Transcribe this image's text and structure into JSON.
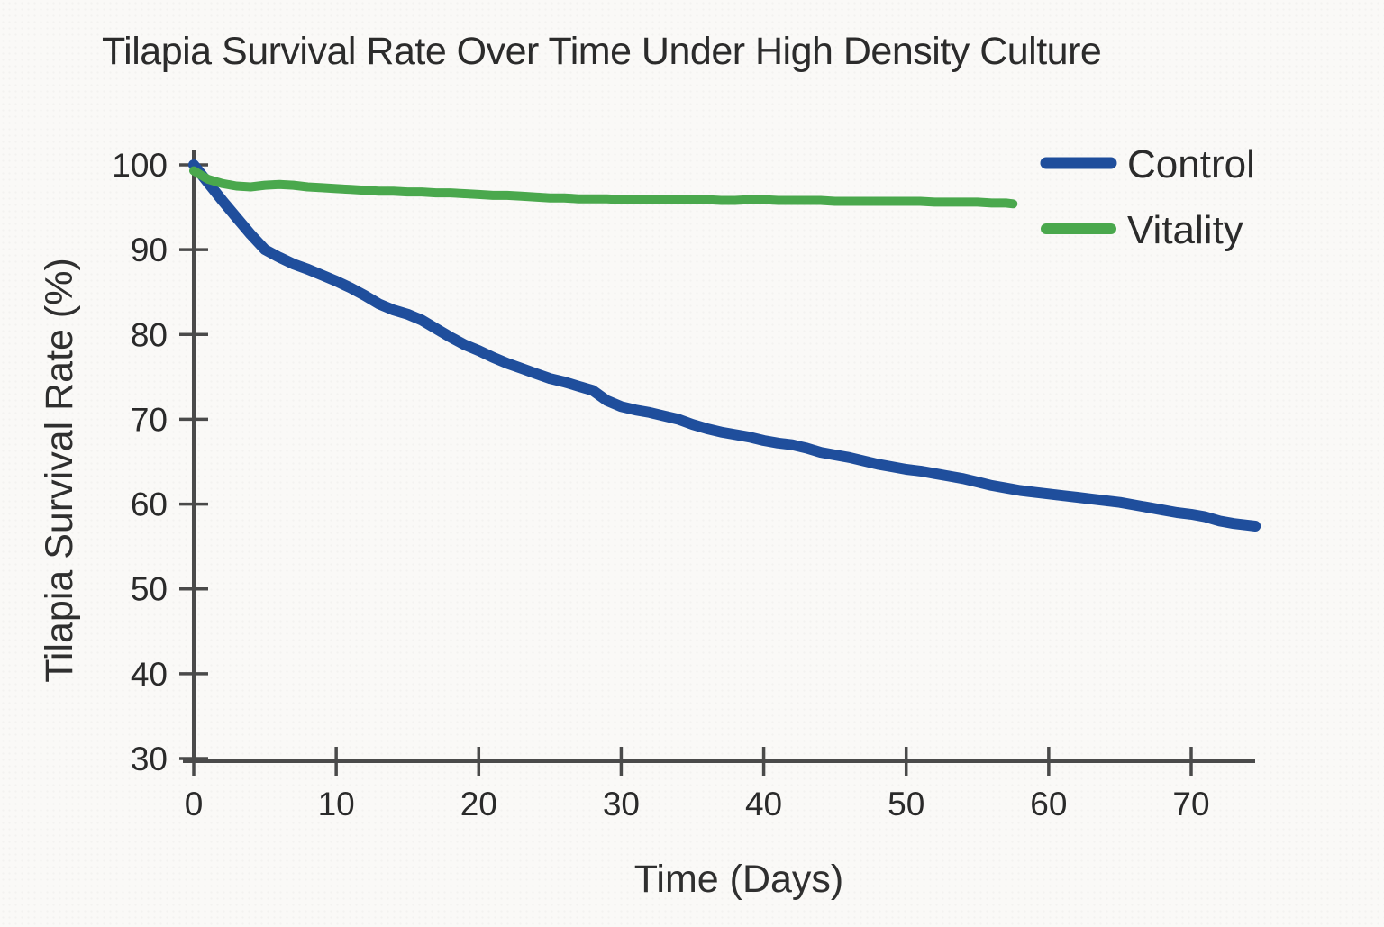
{
  "title": "Tilapia Survival Rate Over Time Under High Density Culture",
  "colors": {
    "control": "#1f4e9c",
    "vitality": "#4aa84d",
    "axis": "#4a4a4a",
    "text": "#2b2b2b",
    "background": "#faf9f7"
  },
  "legend": {
    "position": "upper right",
    "items": [
      {
        "label": "Control",
        "color": "#1f4e9c"
      },
      {
        "label": "Vitality",
        "color": "#4aa84d"
      }
    ]
  },
  "chart_data": {
    "type": "line",
    "title": "Tilapia Survival Rate Over Time Under High Density Culture",
    "xlabel": "Time (Days)",
    "ylabel": "Tilapia Survival Rate (%)",
    "xlim": [
      0,
      75
    ],
    "ylim": [
      30,
      100
    ],
    "x_ticks": [
      0,
      10,
      20,
      30,
      40,
      50,
      60,
      70
    ],
    "y_ticks": [
      30,
      40,
      50,
      60,
      70,
      80,
      90,
      100
    ],
    "grid": false,
    "legend_position": "upper right",
    "series": [
      {
        "name": "Control",
        "color": "#1f4e9c",
        "stroke_width": 12,
        "points": [
          [
            0,
            100
          ],
          [
            1,
            97.9
          ],
          [
            2,
            95.8
          ],
          [
            3,
            93.8
          ],
          [
            4,
            91.8
          ],
          [
            5,
            90
          ],
          [
            6,
            89.1
          ],
          [
            7,
            88.3
          ],
          [
            8,
            87.7
          ],
          [
            9,
            87
          ],
          [
            10,
            86.3
          ],
          [
            11,
            85.5
          ],
          [
            12,
            84.6
          ],
          [
            13,
            83.6
          ],
          [
            14,
            82.9
          ],
          [
            15,
            82.4
          ],
          [
            16,
            81.7
          ],
          [
            17,
            80.7
          ],
          [
            18,
            79.7
          ],
          [
            19,
            78.8
          ],
          [
            20,
            78.1
          ],
          [
            21,
            77.3
          ],
          [
            22,
            76.6
          ],
          [
            23,
            76
          ],
          [
            24,
            75.4
          ],
          [
            25,
            74.8
          ],
          [
            26,
            74.4
          ],
          [
            27,
            73.9
          ],
          [
            28,
            73.4
          ],
          [
            29,
            72.2
          ],
          [
            30,
            71.5
          ],
          [
            31,
            71.1
          ],
          [
            32,
            70.8
          ],
          [
            33,
            70.4
          ],
          [
            34,
            70
          ],
          [
            35,
            69.4
          ],
          [
            36,
            68.9
          ],
          [
            37,
            68.5
          ],
          [
            38,
            68.2
          ],
          [
            39,
            67.9
          ],
          [
            40,
            67.5
          ],
          [
            41,
            67.2
          ],
          [
            42,
            67
          ],
          [
            43,
            66.6
          ],
          [
            44,
            66.1
          ],
          [
            45,
            65.8
          ],
          [
            46,
            65.5
          ],
          [
            47,
            65.1
          ],
          [
            48,
            64.7
          ],
          [
            49,
            64.4
          ],
          [
            50,
            64.1
          ],
          [
            51,
            63.9
          ],
          [
            52,
            63.6
          ],
          [
            53,
            63.3
          ],
          [
            54,
            63
          ],
          [
            55,
            62.6
          ],
          [
            56,
            62.2
          ],
          [
            57,
            61.9
          ],
          [
            58,
            61.6
          ],
          [
            59,
            61.4
          ],
          [
            60,
            61.2
          ],
          [
            61,
            61
          ],
          [
            62,
            60.8
          ],
          [
            63,
            60.6
          ],
          [
            64,
            60.4
          ],
          [
            65,
            60.2
          ],
          [
            66,
            59.9
          ],
          [
            67,
            59.6
          ],
          [
            68,
            59.3
          ],
          [
            69,
            59
          ],
          [
            70,
            58.8
          ],
          [
            71,
            58.5
          ],
          [
            72,
            58
          ],
          [
            73,
            57.7
          ],
          [
            74,
            57.5
          ],
          [
            74.5,
            57.4
          ]
        ]
      },
      {
        "name": "Vitality",
        "color": "#4aa84d",
        "stroke_width": 10,
        "points": [
          [
            0,
            99.3
          ],
          [
            1,
            98.3
          ],
          [
            2,
            97.8
          ],
          [
            3,
            97.5
          ],
          [
            4,
            97.4
          ],
          [
            5,
            97.6
          ],
          [
            6,
            97.7
          ],
          [
            7,
            97.6
          ],
          [
            8,
            97.4
          ],
          [
            9,
            97.3
          ],
          [
            10,
            97.2
          ],
          [
            11,
            97.1
          ],
          [
            12,
            97
          ],
          [
            13,
            96.9
          ],
          [
            14,
            96.9
          ],
          [
            15,
            96.8
          ],
          [
            16,
            96.8
          ],
          [
            17,
            96.7
          ],
          [
            18,
            96.7
          ],
          [
            19,
            96.6
          ],
          [
            20,
            96.5
          ],
          [
            21,
            96.4
          ],
          [
            22,
            96.4
          ],
          [
            23,
            96.3
          ],
          [
            24,
            96.2
          ],
          [
            25,
            96.1
          ],
          [
            26,
            96.1
          ],
          [
            27,
            96
          ],
          [
            28,
            96
          ],
          [
            29,
            96
          ],
          [
            30,
            95.9
          ],
          [
            31,
            95.9
          ],
          [
            32,
            95.9
          ],
          [
            33,
            95.9
          ],
          [
            34,
            95.9
          ],
          [
            35,
            95.9
          ],
          [
            36,
            95.9
          ],
          [
            37,
            95.8
          ],
          [
            38,
            95.8
          ],
          [
            39,
            95.9
          ],
          [
            40,
            95.9
          ],
          [
            41,
            95.8
          ],
          [
            42,
            95.8
          ],
          [
            43,
            95.8
          ],
          [
            44,
            95.8
          ],
          [
            45,
            95.7
          ],
          [
            46,
            95.7
          ],
          [
            47,
            95.7
          ],
          [
            48,
            95.7
          ],
          [
            49,
            95.7
          ],
          [
            50,
            95.7
          ],
          [
            51,
            95.7
          ],
          [
            52,
            95.6
          ],
          [
            53,
            95.6
          ],
          [
            54,
            95.6
          ],
          [
            55,
            95.6
          ],
          [
            56,
            95.5
          ],
          [
            57,
            95.5
          ],
          [
            57.5,
            95.4
          ]
        ]
      }
    ]
  }
}
